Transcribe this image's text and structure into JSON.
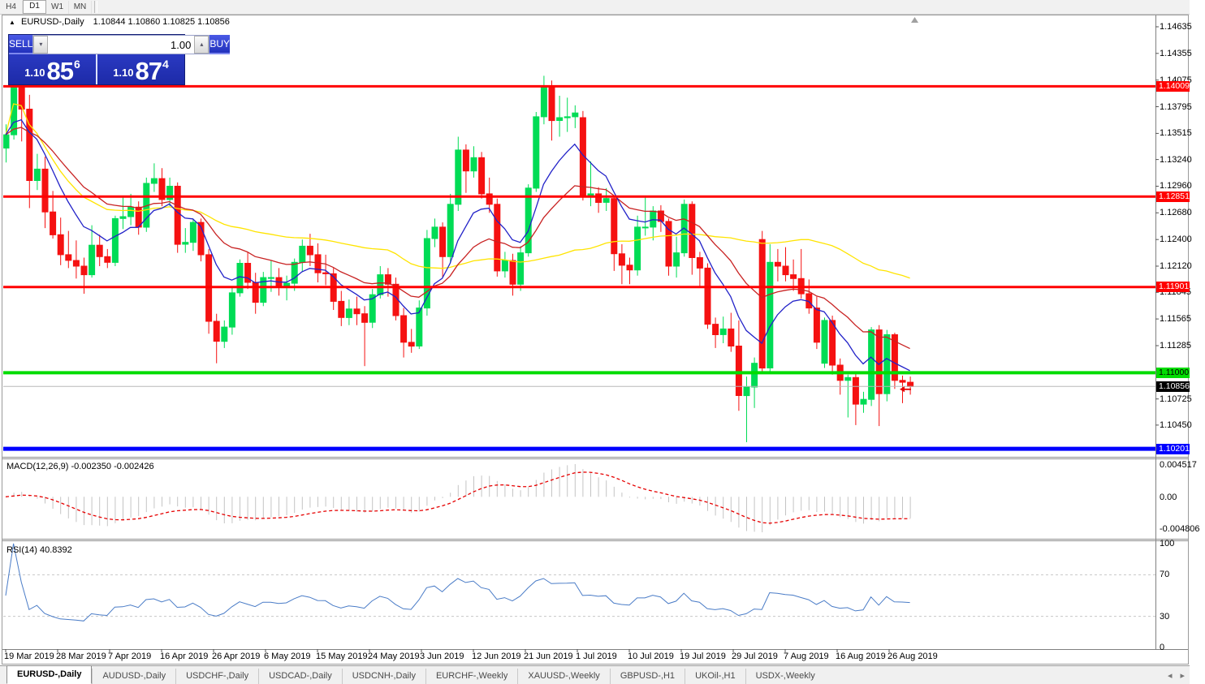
{
  "toolbar": {
    "periods": [
      "H4",
      "D1",
      "W1",
      "MN"
    ],
    "active": "D1"
  },
  "chart_header": {
    "symbol": "EURUSD-,Daily",
    "ohlc_text": "1.10844 1.10860 1.10825 1.10856"
  },
  "trade_panel": {
    "sell_label": "SELL",
    "buy_label": "BUY",
    "volume": "1.00",
    "sell_price": {
      "small": "1.10",
      "big": "85",
      "sup": "6"
    },
    "buy_price": {
      "small": "1.10",
      "big": "87",
      "sup": "4"
    }
  },
  "price_axis": {
    "ticks": [
      "1.14635",
      "1.14355",
      "1.14075",
      "1.13795",
      "1.13515",
      "1.13240",
      "1.12960",
      "1.12680",
      "1.12400",
      "1.12120",
      "1.11845",
      "1.11565",
      "1.11285",
      "1.10725",
      "1.10450"
    ]
  },
  "macd_panel": {
    "label": "MACD(12,26,9) -0.002350 -0.002426",
    "axis": [
      "0.004517",
      "0.00",
      "-0.004806"
    ]
  },
  "rsi_panel": {
    "label": "RSI(14) 40.8392",
    "axis": [
      "100",
      "70",
      "30",
      "0"
    ],
    "guide_levels": [
      70,
      30
    ]
  },
  "date_axis": [
    "19 Mar 2019",
    "28 Mar 2019",
    "7 Apr 2019",
    "16 Apr 2019",
    "26 Apr 2019",
    "6 May 2019",
    "15 May 2019",
    "24 May 2019",
    "3 Jun 2019",
    "12 Jun 2019",
    "21 Jun 2019",
    "1 Jul 2019",
    "10 Jul 2019",
    "19 Jul 2019",
    "29 Jul 2019",
    "7 Aug 2019",
    "16 Aug 2019",
    "26 Aug 2019"
  ],
  "tabs": {
    "items": [
      "EURUSD-,Daily",
      "AUDUSD-,Daily",
      "USDCHF-,Daily",
      "USDCAD-,Daily",
      "USDCNH-,Daily",
      "EURCHF-,Weekly",
      "XAUUSD-,Weekly",
      "GBPUSD-,H1",
      "UKOil-,H1",
      "USDX-,Weekly"
    ],
    "active": 0
  },
  "chart_data": {
    "type": "candlestick",
    "symbol": "EURUSD",
    "timeframe": "Daily",
    "colors": {
      "bull": "#00DC55",
      "bear": "#F51111",
      "ma_fast": "#2222C8",
      "ma_mid": "#C82222",
      "ma_slow": "#FFE400",
      "macd_bar": "#C4C4C4",
      "macd_signal": "#E60000",
      "rsi_line": "#4A7CC7",
      "current_line": "#B8B8B8"
    },
    "ma_overlays": [
      {
        "name": "fast",
        "type": "ema",
        "period": 9,
        "color": "#2222C8"
      },
      {
        "name": "mid",
        "type": "ema",
        "period": 21,
        "color": "#C82222"
      },
      {
        "name": "slow",
        "type": "sma",
        "period": 50,
        "color": "#FFE400"
      }
    ],
    "indicators": {
      "macd": {
        "fast": 12,
        "slow": 26,
        "signal": 9
      },
      "rsi": {
        "period": 14
      }
    },
    "levels": [
      {
        "price": 1.14009,
        "label": "1.14009",
        "color": "#FF0000",
        "width": 3
      },
      {
        "price": 1.12851,
        "label": "1.12851",
        "color": "#FF0000",
        "width": 3
      },
      {
        "price": 1.11901,
        "label": "1.11901",
        "color": "#FF0000",
        "width": 3
      },
      {
        "price": 1.11,
        "label": "1.11000",
        "color": "#00DC00",
        "width": 4
      },
      {
        "price": 1.10201,
        "label": "1.10201",
        "color": "#0000FF",
        "width": 5
      }
    ],
    "current_price": {
      "price": 1.10856,
      "label": "1.10856"
    },
    "candles": [
      [
        1.1336,
        1.1361,
        1.1321,
        1.135
      ],
      [
        1.135,
        1.1448,
        1.1345,
        1.1415
      ],
      [
        1.1415,
        1.142,
        1.1343,
        1.1377
      ],
      [
        1.1377,
        1.1392,
        1.1273,
        1.1302
      ],
      [
        1.1302,
        1.133,
        1.1292,
        1.1314
      ],
      [
        1.1314,
        1.1327,
        1.1252,
        1.1269
      ],
      [
        1.1269,
        1.1291,
        1.1241,
        1.1245
      ],
      [
        1.1245,
        1.1263,
        1.1213,
        1.1224
      ],
      [
        1.1224,
        1.1249,
        1.121,
        1.1218
      ],
      [
        1.1218,
        1.1239,
        1.1199,
        1.1212
      ],
      [
        1.1212,
        1.1221,
        1.1183,
        1.1203
      ],
      [
        1.1203,
        1.1255,
        1.12,
        1.1234
      ],
      [
        1.1234,
        1.1245,
        1.1212,
        1.1222
      ],
      [
        1.1222,
        1.123,
        1.121,
        1.1216
      ],
      [
        1.1216,
        1.1265,
        1.1212,
        1.1262
      ],
      [
        1.1262,
        1.1285,
        1.1251,
        1.1264
      ],
      [
        1.1264,
        1.1288,
        1.1255,
        1.1274
      ],
      [
        1.1274,
        1.128,
        1.1245,
        1.1253
      ],
      [
        1.1253,
        1.1305,
        1.1248,
        1.1299
      ],
      [
        1.1299,
        1.132,
        1.129,
        1.1304
      ],
      [
        1.1304,
        1.1315,
        1.1275,
        1.1282
      ],
      [
        1.1282,
        1.1305,
        1.1275,
        1.1296
      ],
      [
        1.1296,
        1.13,
        1.1226,
        1.1235
      ],
      [
        1.1235,
        1.1252,
        1.1226,
        1.1237
      ],
      [
        1.1237,
        1.1262,
        1.1228,
        1.1258
      ],
      [
        1.1258,
        1.1262,
        1.1217,
        1.1224
      ],
      [
        1.1224,
        1.123,
        1.1141,
        1.1154
      ],
      [
        1.1154,
        1.1162,
        1.111,
        1.1133
      ],
      [
        1.1133,
        1.1155,
        1.1126,
        1.1148
      ],
      [
        1.1148,
        1.119,
        1.114,
        1.1184
      ],
      [
        1.1184,
        1.1219,
        1.118,
        1.1215
      ],
      [
        1.1215,
        1.1227,
        1.1188,
        1.1195
      ],
      [
        1.1195,
        1.1205,
        1.1162,
        1.1174
      ],
      [
        1.1174,
        1.1206,
        1.117,
        1.12
      ],
      [
        1.12,
        1.1218,
        1.1185,
        1.12
      ],
      [
        1.12,
        1.121,
        1.1181,
        1.1191
      ],
      [
        1.1191,
        1.1202,
        1.1176,
        1.1194
      ],
      [
        1.1194,
        1.122,
        1.1186,
        1.1216
      ],
      [
        1.1216,
        1.124,
        1.1206,
        1.1233
      ],
      [
        1.1233,
        1.1246,
        1.1212,
        1.1224
      ],
      [
        1.1224,
        1.1236,
        1.1195,
        1.1205
      ],
      [
        1.1205,
        1.1224,
        1.1192,
        1.1204
      ],
      [
        1.1204,
        1.121,
        1.1166,
        1.1175
      ],
      [
        1.1175,
        1.1186,
        1.1149,
        1.1158
      ],
      [
        1.1158,
        1.1177,
        1.115,
        1.1167
      ],
      [
        1.1167,
        1.118,
        1.115,
        1.1162
      ],
      [
        1.1162,
        1.117,
        1.1107,
        1.1153
      ],
      [
        1.1153,
        1.1188,
        1.1147,
        1.1182
      ],
      [
        1.1182,
        1.1212,
        1.1178,
        1.1203
      ],
      [
        1.1203,
        1.121,
        1.118,
        1.1193
      ],
      [
        1.1193,
        1.12,
        1.1155,
        1.116
      ],
      [
        1.116,
        1.1168,
        1.1116,
        1.1132
      ],
      [
        1.1132,
        1.1146,
        1.1121,
        1.1128
      ],
      [
        1.1128,
        1.1176,
        1.1125,
        1.1168
      ],
      [
        1.1168,
        1.125,
        1.116,
        1.1241
      ],
      [
        1.1241,
        1.1262,
        1.1232,
        1.1253
      ],
      [
        1.1253,
        1.1258,
        1.12,
        1.1222
      ],
      [
        1.1222,
        1.1288,
        1.1215,
        1.1277
      ],
      [
        1.1277,
        1.1348,
        1.127,
        1.1334
      ],
      [
        1.1334,
        1.134,
        1.1289,
        1.1312
      ],
      [
        1.1312,
        1.1338,
        1.1305,
        1.1326
      ],
      [
        1.1326,
        1.1332,
        1.1283,
        1.1288
      ],
      [
        1.1288,
        1.1305,
        1.1268,
        1.1277
      ],
      [
        1.1277,
        1.1283,
        1.1201,
        1.1207
      ],
      [
        1.1207,
        1.1227,
        1.12,
        1.1218
      ],
      [
        1.1218,
        1.1225,
        1.1181,
        1.1193
      ],
      [
        1.1193,
        1.1233,
        1.1186,
        1.1226
      ],
      [
        1.1226,
        1.1298,
        1.1222,
        1.1294
      ],
      [
        1.1294,
        1.1374,
        1.129,
        1.1369
      ],
      [
        1.1369,
        1.1412,
        1.1361,
        1.14
      ],
      [
        1.14,
        1.1407,
        1.1344,
        1.1365
      ],
      [
        1.1365,
        1.1391,
        1.1348,
        1.1368
      ],
      [
        1.1368,
        1.1389,
        1.1353,
        1.1369
      ],
      [
        1.1369,
        1.1381,
        1.1357,
        1.1373
      ],
      [
        1.1368,
        1.1375,
        1.1281,
        1.1285
      ],
      [
        1.1285,
        1.1322,
        1.1275,
        1.1288
      ],
      [
        1.1288,
        1.1295,
        1.1268,
        1.1279
      ],
      [
        1.1279,
        1.1294,
        1.127,
        1.1283
      ],
      [
        1.1283,
        1.1286,
        1.1207,
        1.1225
      ],
      [
        1.1225,
        1.1235,
        1.1193,
        1.1213
      ],
      [
        1.1213,
        1.1221,
        1.1193,
        1.1208
      ],
      [
        1.1208,
        1.1265,
        1.1202,
        1.1253
      ],
      [
        1.1253,
        1.1286,
        1.1244,
        1.1253
      ],
      [
        1.1253,
        1.1275,
        1.1239,
        1.127
      ],
      [
        1.127,
        1.1276,
        1.1248,
        1.1259
      ],
      [
        1.1259,
        1.1262,
        1.1202,
        1.1212
      ],
      [
        1.1212,
        1.1243,
        1.12,
        1.1226
      ],
      [
        1.1226,
        1.1282,
        1.1222,
        1.1277
      ],
      [
        1.1277,
        1.128,
        1.1203,
        1.1221
      ],
      [
        1.1221,
        1.1227,
        1.119,
        1.121
      ],
      [
        1.121,
        1.1215,
        1.1146,
        1.1151
      ],
      [
        1.1151,
        1.1158,
        1.1126,
        1.114
      ],
      [
        1.114,
        1.1159,
        1.1131,
        1.1146
      ],
      [
        1.1146,
        1.1163,
        1.1122,
        1.1128
      ],
      [
        1.1128,
        1.1155,
        1.106,
        1.1076
      ],
      [
        1.1076,
        1.1096,
        1.1027,
        1.1085
      ],
      [
        1.1085,
        1.1116,
        1.1063,
        1.111
      ],
      [
        1.124,
        1.1249,
        1.1101,
        1.1105
      ],
      [
        1.1105,
        1.1235,
        1.1101,
        1.1216
      ],
      [
        1.1216,
        1.123,
        1.1196,
        1.1212
      ],
      [
        1.1212,
        1.1232,
        1.1196,
        1.1203
      ],
      [
        1.1203,
        1.1219,
        1.1186,
        1.1199
      ],
      [
        1.1199,
        1.123,
        1.1178,
        1.1183
      ],
      [
        1.1183,
        1.1198,
        1.1162,
        1.1168
      ],
      [
        1.1168,
        1.118,
        1.1125,
        1.1132
      ],
      [
        1.111,
        1.1158,
        1.1105,
        1.1155
      ],
      [
        1.1155,
        1.116,
        1.1098,
        1.1108
      ],
      [
        1.1108,
        1.1115,
        1.1077,
        1.1092
      ],
      [
        1.1092,
        1.1098,
        1.1053,
        1.1095
      ],
      [
        1.1095,
        1.11,
        1.1045,
        1.1067
      ],
      [
        1.1067,
        1.108,
        1.1058,
        1.1072
      ],
      [
        1.1072,
        1.1148,
        1.1065,
        1.1145
      ],
      [
        1.1145,
        1.115,
        1.1044,
        1.1078
      ],
      [
        1.1078,
        1.1145,
        1.107,
        1.114
      ],
      [
        1.114,
        1.1142,
        1.1083,
        1.1092
      ],
      [
        1.1092,
        1.1097,
        1.1068,
        1.109
      ],
      [
        1.109,
        1.1096,
        1.1077,
        1.10856
      ]
    ]
  }
}
